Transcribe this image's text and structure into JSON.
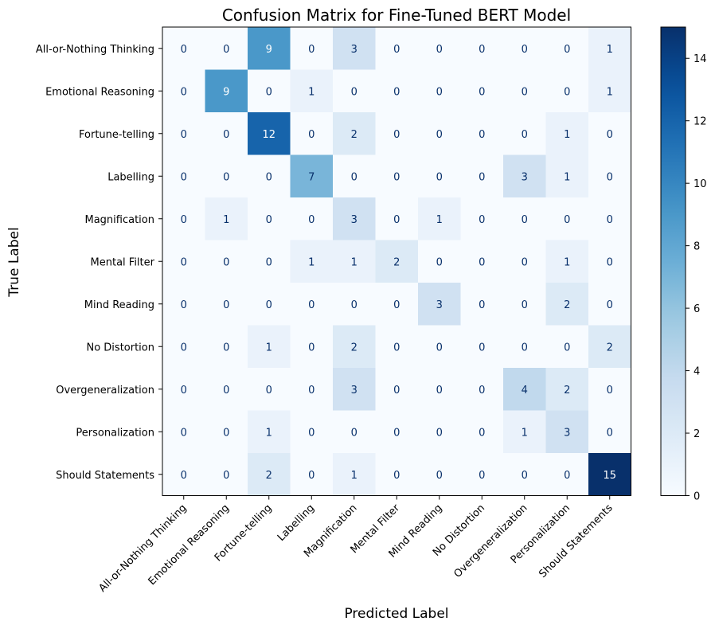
{
  "chart_data": {
    "type": "heatmap",
    "title": "Confusion Matrix for Fine-Tuned BERT Model",
    "xlabel": "Predicted Label",
    "ylabel": "True Label",
    "labels": [
      "All-or-Nothing Thinking",
      "Emotional Reasoning",
      "Fortune-telling",
      "Labelling",
      "Magnification",
      "Mental Filter",
      "Mind Reading",
      "No Distortion",
      "Overgeneralization",
      "Personalization",
      "Should Statements"
    ],
    "matrix": [
      [
        0,
        0,
        9,
        0,
        3,
        0,
        0,
        0,
        0,
        0,
        1
      ],
      [
        0,
        9,
        0,
        1,
        0,
        0,
        0,
        0,
        0,
        0,
        1
      ],
      [
        0,
        0,
        12,
        0,
        2,
        0,
        0,
        0,
        0,
        1,
        0
      ],
      [
        0,
        0,
        0,
        7,
        0,
        0,
        0,
        0,
        3,
        1,
        0
      ],
      [
        0,
        1,
        0,
        0,
        3,
        0,
        1,
        0,
        0,
        0,
        0
      ],
      [
        0,
        0,
        0,
        1,
        1,
        2,
        0,
        0,
        0,
        1,
        0
      ],
      [
        0,
        0,
        0,
        0,
        0,
        0,
        3,
        0,
        0,
        2,
        0
      ],
      [
        0,
        0,
        1,
        0,
        2,
        0,
        0,
        0,
        0,
        0,
        2
      ],
      [
        0,
        0,
        0,
        0,
        3,
        0,
        0,
        0,
        4,
        2,
        0
      ],
      [
        0,
        0,
        1,
        0,
        0,
        0,
        0,
        0,
        1,
        3,
        0
      ],
      [
        0,
        0,
        2,
        0,
        1,
        0,
        0,
        0,
        0,
        0,
        15
      ]
    ],
    "colorbar": {
      "min": 0,
      "max": 15,
      "ticks": [
        0,
        2,
        4,
        6,
        8,
        10,
        12,
        14
      ]
    },
    "colormap": "Blues",
    "colormap_low": "#f7fbff",
    "colormap_high": "#08306b",
    "grid": false
  }
}
